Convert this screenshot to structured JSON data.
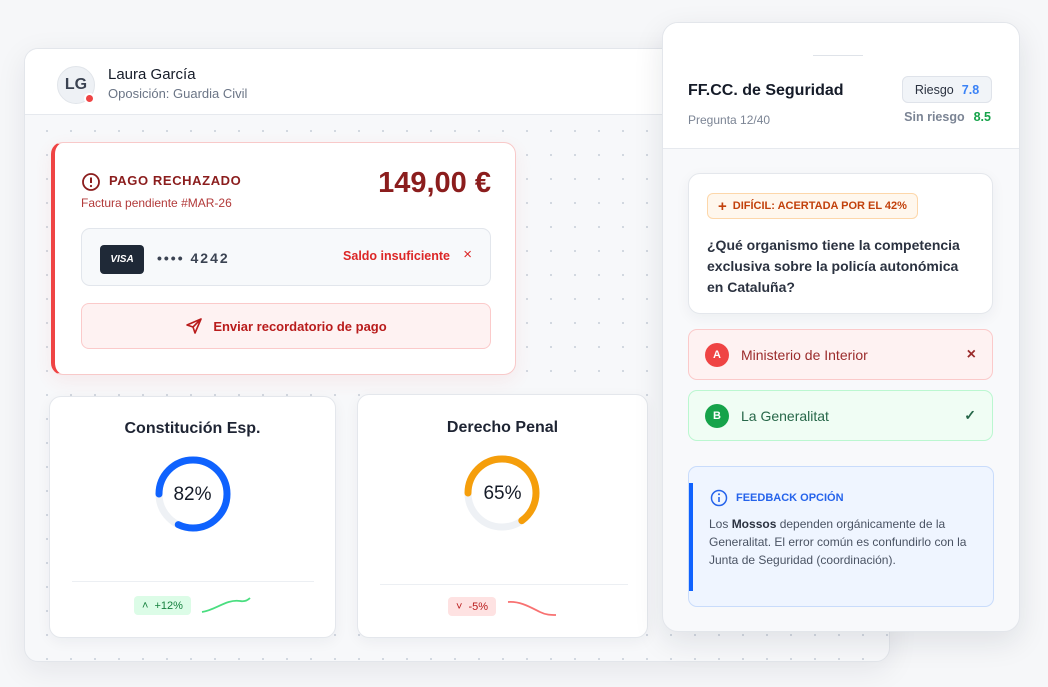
{
  "user": {
    "initials": "LG",
    "name": "Laura García",
    "subtitle": "Oposición: Guardia Civil"
  },
  "payment": {
    "status": "PAGO RECHAZADO",
    "invoice": "Factura pendiente #MAR-26",
    "amount": "149,00 €",
    "card_brand": "VISA",
    "card_mask": "•••• 4242",
    "error": "Saldo insuficiente",
    "reminder_button": "Enviar recordatorio de pago"
  },
  "stats": [
    {
      "title": "Constitución Esp.",
      "percent": 82,
      "label": "82%",
      "trend": "+12%",
      "trend_dir": "up",
      "color": "#0f62fe"
    },
    {
      "title": "Derecho Penal",
      "percent": 65,
      "label": "65%",
      "trend": "-5%",
      "trend_dir": "down",
      "color": "#f59e0b"
    }
  ],
  "quiz": {
    "title": "FF.CC. de Seguridad",
    "progress": "Pregunta 12/40",
    "risk_label": "Riesgo",
    "risk_value": "7.8",
    "norisk_label": "Sin riesgo",
    "norisk_value": "8.5",
    "difficulty": "DIFÍCIL: ACERTADA POR EL 42%",
    "question": "¿Qué organismo tiene la competencia exclusiva sobre la policía autonómica en Cataluña?",
    "options": [
      {
        "letter": "A",
        "text": "Ministerio de Interior",
        "state": "wrong"
      },
      {
        "letter": "B",
        "text": "La Generalitat",
        "state": "correct"
      }
    ],
    "feedback": {
      "title": "FEEDBACK OPCIÓN",
      "pre": "Los ",
      "bold": "Mossos",
      "post": " dependen orgánicamente de la Generalitat. El error común es confundirlo con la Junta de Seguridad (coordinación)."
    }
  }
}
